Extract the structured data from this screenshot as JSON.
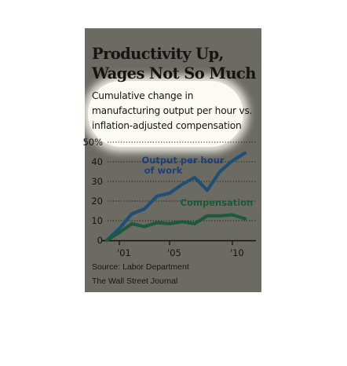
{
  "title_line1": "Productivity Up,",
  "title_line2": "Wages Not So Much",
  "subtitle_line1": "Cumulative change in",
  "subtitle_line2": "manufacturing output per hour vs.",
  "subtitle_line3": "inflation-adjusted compensation",
  "source": "Source: Labor Department",
  "credit": "The Wall Street Journal",
  "colors": {
    "background": "#6b6b63",
    "output": "#1f4f74",
    "output_label": "#1e3f78",
    "compensation": "#1c5a3a",
    "compensation_label": "#1a5a36",
    "highlight": "#fbfbf4"
  },
  "chart_data": {
    "type": "line",
    "title": "Productivity Up, Wages Not So Much",
    "subtitle": "Cumulative change in manufacturing output per hour vs. inflation-adjusted compensation",
    "x": [
      2000,
      2001,
      2002,
      2003,
      2004,
      2005,
      2006,
      2007,
      2008,
      2009,
      2010,
      2011,
      2012
    ],
    "x_tick_values": [
      2001,
      2005,
      2010
    ],
    "x_tick_labels": [
      "'01",
      "'05",
      "'10"
    ],
    "y_tick_values": [
      0,
      10,
      20,
      30,
      40,
      50
    ],
    "y_tick_labels": [
      "0",
      "10",
      "20",
      "30",
      "40",
      "50%"
    ],
    "ylim": [
      0,
      50
    ],
    "grid": "dotted horizontal",
    "series": [
      {
        "name": "Output per hour of work",
        "label_line1": "Output per hour",
        "label_line2": "of work",
        "values": [
          0,
          6,
          13.5,
          16,
          22.5,
          24,
          28.5,
          32,
          25.5,
          35,
          40.5,
          44.5,
          null
        ]
      },
      {
        "name": "Compensation",
        "label_line1": "Compensation",
        "values": [
          0,
          4,
          8.5,
          7,
          9,
          8.5,
          9.5,
          8.5,
          12.5,
          12.5,
          13,
          11,
          null
        ]
      }
    ]
  }
}
